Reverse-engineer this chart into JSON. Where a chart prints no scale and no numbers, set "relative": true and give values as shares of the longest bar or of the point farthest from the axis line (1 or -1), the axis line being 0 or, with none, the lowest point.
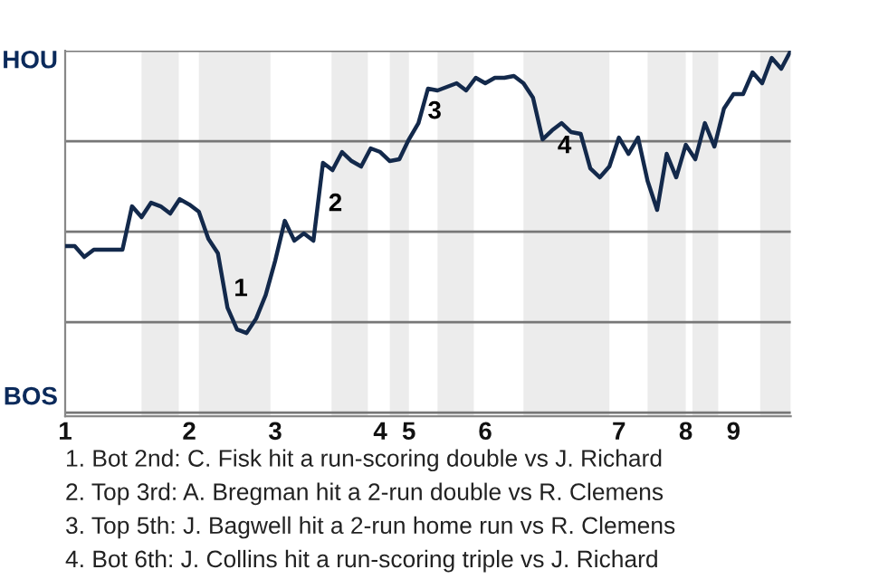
{
  "chart_data": {
    "type": "line",
    "relative": true,
    "categories": [
      "1",
      null,
      null,
      null,
      null,
      null,
      null,
      null,
      null,
      null,
      null,
      null,
      null,
      "2",
      null,
      null,
      null,
      null,
      null,
      null,
      null,
      null,
      "3",
      null,
      null,
      null,
      null,
      null,
      null,
      null,
      null,
      null,
      null,
      "4",
      null,
      null,
      "5",
      null,
      null,
      null,
      null,
      null,
      null,
      null,
      "6",
      null,
      null,
      null,
      null,
      null,
      null,
      null,
      null,
      null,
      null,
      null,
      null,
      null,
      "7",
      null,
      null,
      null,
      null,
      null,
      null,
      "8",
      null,
      null,
      null,
      null,
      "9",
      null,
      null,
      null,
      null,
      null,
      null
    ],
    "series": [
      {
        "color": "#13294b",
        "values": [
          0.46,
          0.46,
          0.43,
          0.45,
          0.45,
          0.45,
          0.45,
          0.57,
          0.54,
          0.58,
          0.57,
          0.55,
          0.59,
          0.575,
          0.555,
          0.48,
          0.44,
          0.29,
          0.23,
          0.22,
          0.26,
          0.325,
          0.42,
          0.53,
          0.475,
          0.495,
          0.475,
          0.69,
          0.67,
          0.72,
          0.695,
          0.68,
          0.73,
          0.72,
          0.695,
          0.7,
          0.755,
          0.8,
          0.895,
          0.89,
          0.9,
          0.91,
          0.89,
          0.925,
          0.91,
          0.925,
          0.925,
          0.93,
          0.91,
          0.87,
          0.755,
          0.78,
          0.8,
          0.775,
          0.77,
          0.675,
          0.65,
          0.68,
          0.76,
          0.715,
          0.76,
          0.64,
          0.56,
          0.715,
          0.65,
          0.74,
          0.7,
          0.8,
          0.735,
          0.84,
          0.88,
          0.88,
          0.94,
          0.91,
          0.98,
          0.95,
          1.0
        ]
      }
    ],
    "grid": "y",
    "marker": "none",
    "line_style": "solid",
    "annotations": [
      "1",
      "2",
      "3",
      "4",
      "HOU",
      "BOS",
      "1. Bot 2nd: C. Fisk hit a run-scoring double vs J. Richard",
      "2. Top 3rd: A. Bregman hit a 2-run double vs R. Clemens",
      "3. Top 5th: J. Bagwell hit a 2-run home run vs R. Clemens",
      "4. Bot 6th: J. Collins hit a run-scoring triple vs J. Richard"
    ]
  }
}
